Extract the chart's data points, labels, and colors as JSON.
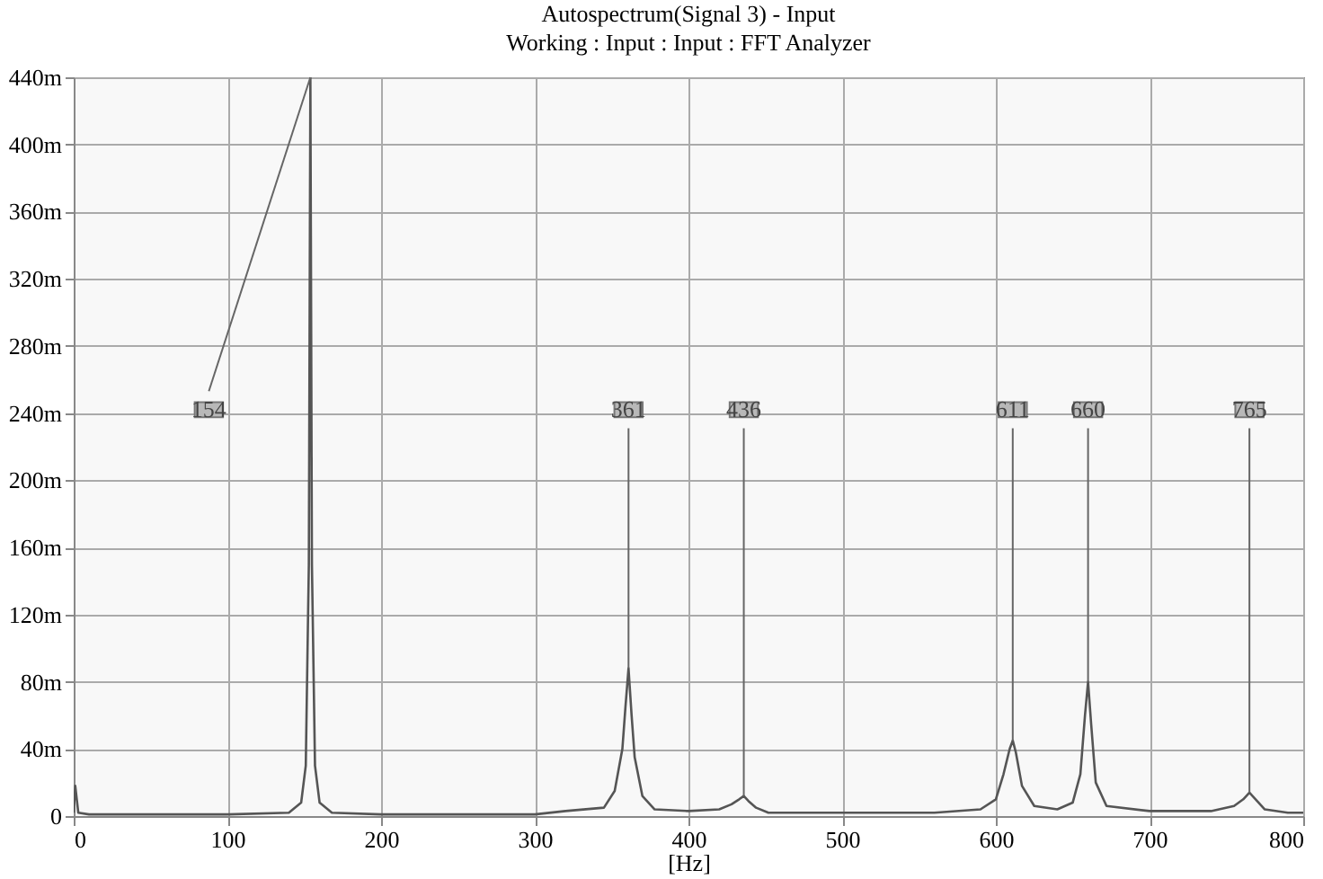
{
  "chart_data": {
    "type": "line",
    "title": "Autospectrum(Signal 3) - Input",
    "subtitle": "Working : Input : Input : FFT Analyzer",
    "xlabel": "[Hz]",
    "x": [
      0,
      1,
      3,
      10,
      100,
      140,
      148,
      151,
      153,
      154,
      155,
      157,
      160,
      168,
      200,
      300,
      320,
      345,
      352,
      357,
      359,
      361,
      363,
      365,
      370,
      378,
      400,
      420,
      428,
      433,
      436,
      439,
      444,
      452,
      480,
      560,
      590,
      600,
      605,
      609,
      611,
      613,
      617,
      625,
      640,
      650,
      655,
      658,
      660,
      662,
      665,
      672,
      700,
      740,
      755,
      761,
      765,
      769,
      775,
      790,
      800
    ],
    "series": [
      {
        "color": "#555555",
        "values": [
          2,
          18,
          2,
          1,
          1,
          2,
          8,
          30,
          150,
          440,
          150,
          30,
          8,
          2,
          1,
          1,
          3,
          5,
          15,
          40,
          65,
          88,
          60,
          35,
          12,
          4,
          3,
          4,
          7,
          10,
          12,
          9,
          5,
          2,
          2,
          2,
          4,
          10,
          25,
          40,
          45,
          38,
          18,
          6,
          4,
          8,
          25,
          60,
          80,
          55,
          20,
          6,
          3,
          3,
          6,
          10,
          14,
          10,
          4,
          2,
          2
        ]
      }
    ],
    "xlim": [
      0,
      800
    ],
    "xticks": [
      0,
      100,
      200,
      300,
      400,
      500,
      600,
      700,
      800
    ],
    "ylim": [
      0,
      440
    ],
    "yticks": [
      0,
      {
        "value": 40,
        "label": "40m"
      },
      {
        "value": 80,
        "label": "80m"
      },
      {
        "value": 120,
        "label": "120m"
      },
      {
        "value": 160,
        "label": "160m"
      },
      {
        "value": 200,
        "label": "200m"
      },
      {
        "value": 240,
        "label": "240m"
      },
      {
        "value": 280,
        "label": "280m"
      },
      {
        "value": 320,
        "label": "320m"
      },
      {
        "value": 360,
        "label": "360m"
      },
      {
        "value": 400,
        "label": "400m"
      },
      {
        "value": 440,
        "label": "440m"
      }
    ],
    "grid": true,
    "annotations": [
      {
        "text": "154",
        "x": 154,
        "y": 440
      },
      {
        "text": "361",
        "x": 361,
        "y": 88
      },
      {
        "text": "436",
        "x": 436,
        "y": 12
      },
      {
        "text": "611",
        "x": 611,
        "y": 45
      },
      {
        "text": "660",
        "x": 660,
        "y": 80
      },
      {
        "text": "765",
        "x": 765,
        "y": 14
      }
    ]
  }
}
